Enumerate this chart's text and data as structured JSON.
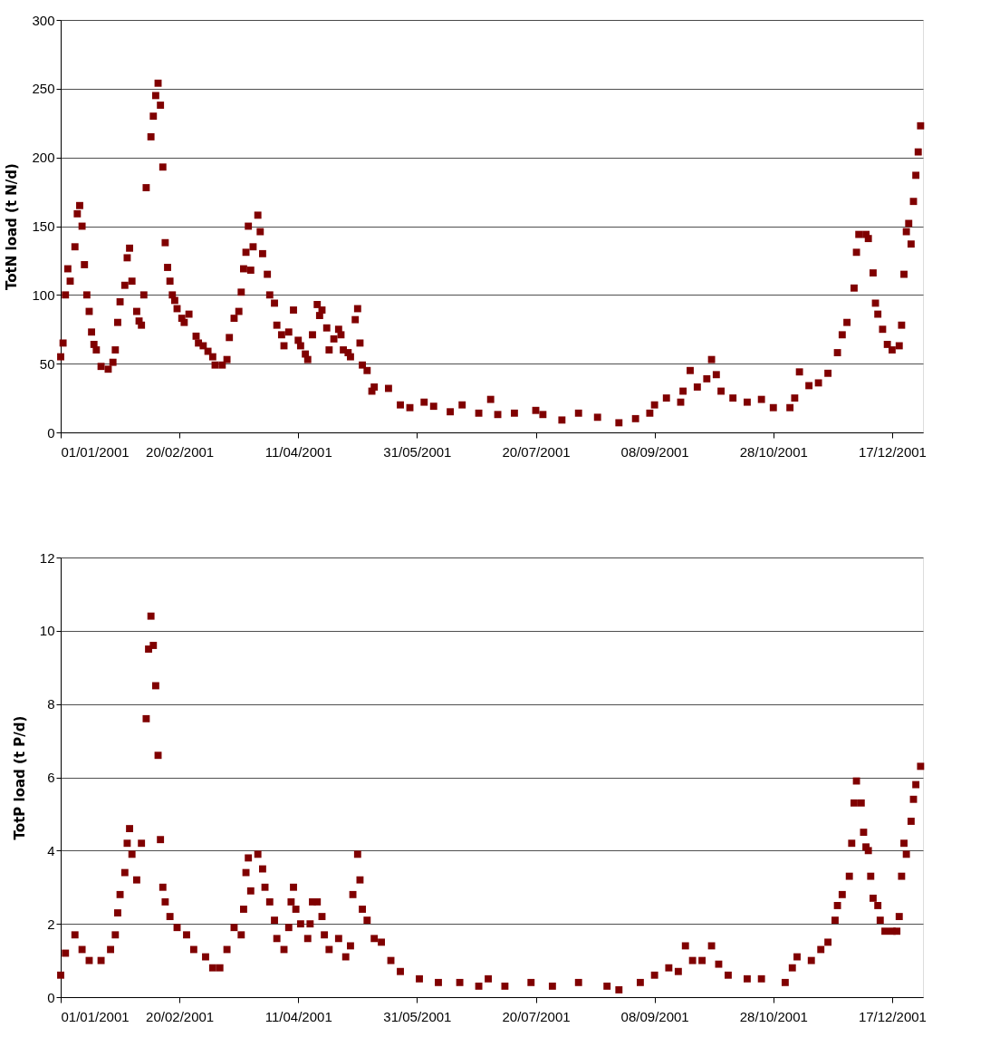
{
  "chart_data": [
    {
      "type": "scatter",
      "ylabel": "TotN load (t N/d)",
      "marker": "square",
      "grid": "y",
      "xlim": [
        "2001-01-01",
        "2001-12-30"
      ],
      "ylim": [
        0,
        300
      ],
      "yticks": [
        0,
        50,
        100,
        150,
        200,
        250,
        300
      ],
      "xticks": [
        {
          "value": "2001-01-01",
          "label": "01/01/2001"
        },
        {
          "value": "2001-02-20",
          "label": "20/02/2001"
        },
        {
          "value": "2001-04-11",
          "label": "11/04/2001"
        },
        {
          "value": "2001-05-31",
          "label": "31/05/2001"
        },
        {
          "value": "2001-07-20",
          "label": "20/07/2001"
        },
        {
          "value": "2001-09-08",
          "label": "08/09/2001"
        },
        {
          "value": "2001-10-28",
          "label": "28/10/2001"
        },
        {
          "value": "2001-12-17",
          "label": "17/12/2001"
        }
      ],
      "series": [
        {
          "color": "#800000",
          "x": [
            "2001-01-01",
            "2001-01-02",
            "2001-01-03",
            "2001-01-04",
            "2001-01-05",
            "2001-01-07",
            "2001-01-08",
            "2001-01-09",
            "2001-01-10",
            "2001-01-11",
            "2001-01-12",
            "2001-01-13",
            "2001-01-14",
            "2001-01-15",
            "2001-01-16",
            "2001-01-18",
            "2001-01-21",
            "2001-01-23",
            "2001-01-24",
            "2001-01-25",
            "2001-01-26",
            "2001-01-28",
            "2001-01-29",
            "2001-01-30",
            "2001-01-31",
            "2001-02-02",
            "2001-02-03",
            "2001-02-04",
            "2001-02-05",
            "2001-02-06",
            "2001-02-08",
            "2001-02-09",
            "2001-02-10",
            "2001-02-11",
            "2001-02-12",
            "2001-02-13",
            "2001-02-14",
            "2001-02-15",
            "2001-02-16",
            "2001-02-17",
            "2001-02-18",
            "2001-02-19",
            "2001-02-21",
            "2001-02-22",
            "2001-02-24",
            "2001-02-27",
            "2001-02-28",
            "2001-03-02",
            "2001-03-04",
            "2001-03-06",
            "2001-03-07",
            "2001-03-10",
            "2001-03-12",
            "2001-03-13",
            "2001-03-15",
            "2001-03-17",
            "2001-03-18",
            "2001-03-19",
            "2001-03-20",
            "2001-03-21",
            "2001-03-22",
            "2001-03-23",
            "2001-03-25",
            "2001-03-26",
            "2001-03-27",
            "2001-03-29",
            "2001-03-30",
            "2001-04-01",
            "2001-04-02",
            "2001-04-04",
            "2001-04-05",
            "2001-04-07",
            "2001-04-09",
            "2001-04-11",
            "2001-04-12",
            "2001-04-14",
            "2001-04-15",
            "2001-04-17",
            "2001-04-19",
            "2001-04-20",
            "2001-04-21",
            "2001-04-23",
            "2001-04-24",
            "2001-04-26",
            "2001-04-28",
            "2001-04-29",
            "2001-04-30",
            "2001-05-02",
            "2001-05-03",
            "2001-05-05",
            "2001-05-06",
            "2001-05-07",
            "2001-05-08",
            "2001-05-10",
            "2001-05-12",
            "2001-05-13",
            "2001-05-19",
            "2001-05-24",
            "2001-05-28",
            "2001-06-03",
            "2001-06-07",
            "2001-06-14",
            "2001-06-19",
            "2001-06-26",
            "2001-07-01",
            "2001-07-04",
            "2001-07-11",
            "2001-07-20",
            "2001-07-23",
            "2001-07-31",
            "2001-08-07",
            "2001-08-15",
            "2001-08-24",
            "2001-08-31",
            "2001-09-06",
            "2001-09-08",
            "2001-09-13",
            "2001-09-19",
            "2001-09-20",
            "2001-09-23",
            "2001-09-26",
            "2001-09-30",
            "2001-10-02",
            "2001-10-04",
            "2001-10-06",
            "2001-10-11",
            "2001-10-17",
            "2001-10-23",
            "2001-10-28",
            "2001-11-04",
            "2001-11-06",
            "2001-11-08",
            "2001-11-12",
            "2001-11-16",
            "2001-11-20",
            "2001-11-24",
            "2001-11-26",
            "2001-11-28",
            "2001-12-01",
            "2001-12-02",
            "2001-12-03",
            "2001-12-06",
            "2001-12-07",
            "2001-12-09",
            "2001-12-10",
            "2001-12-11",
            "2001-12-13",
            "2001-12-15",
            "2001-12-17",
            "2001-12-20",
            "2001-12-21",
            "2001-12-22",
            "2001-12-23",
            "2001-12-24",
            "2001-12-25",
            "2001-12-26",
            "2001-12-27",
            "2001-12-28",
            "2001-12-29"
          ],
          "values": [
            55,
            65,
            100,
            119,
            110,
            135,
            159,
            165,
            150,
            122,
            100,
            88,
            73,
            64,
            60,
            48,
            46,
            51,
            60,
            80,
            95,
            107,
            127,
            134,
            110,
            88,
            81,
            78,
            100,
            178,
            215,
            230,
            245,
            254,
            238,
            193,
            138,
            120,
            110,
            100,
            96,
            90,
            83,
            80,
            86,
            70,
            65,
            63,
            59,
            55,
            49,
            49,
            53,
            69,
            83,
            88,
            102,
            119,
            131,
            150,
            118,
            135,
            158,
            146,
            130,
            115,
            100,
            94,
            78,
            71,
            63,
            73,
            89,
            67,
            63,
            57,
            53,
            71,
            93,
            85,
            89,
            76,
            60,
            68,
            75,
            71,
            60,
            58,
            55,
            82,
            90,
            65,
            49,
            45,
            30,
            33,
            32,
            20,
            18,
            22,
            19,
            15,
            20,
            14,
            24,
            13,
            14,
            16,
            13,
            9,
            14,
            11,
            7,
            10,
            14,
            20,
            25,
            22,
            30,
            45,
            33,
            39,
            53,
            42,
            30,
            25,
            22,
            24,
            18,
            18,
            25,
            44,
            34,
            36,
            43,
            58,
            71,
            80,
            105,
            131,
            144,
            144,
            141,
            116,
            94,
            86,
            75,
            64,
            60,
            63,
            78,
            115,
            146,
            152,
            137,
            168,
            187,
            204,
            223
          ]
        }
      ]
    },
    {
      "type": "scatter",
      "ylabel": "TotP load (t P/d)",
      "marker": "square",
      "grid": "y",
      "xlim": [
        "2001-01-01",
        "2001-12-30"
      ],
      "ylim": [
        0,
        12
      ],
      "yticks": [
        0,
        2,
        4,
        6,
        8,
        10,
        12
      ],
      "xticks": [
        {
          "value": "2001-01-01",
          "label": "01/01/2001"
        },
        {
          "value": "2001-02-20",
          "label": "20/02/2001"
        },
        {
          "value": "2001-04-11",
          "label": "11/04/2001"
        },
        {
          "value": "2001-05-31",
          "label": "31/05/2001"
        },
        {
          "value": "2001-07-20",
          "label": "20/07/2001"
        },
        {
          "value": "2001-09-08",
          "label": "08/09/2001"
        },
        {
          "value": "2001-10-28",
          "label": "28/10/2001"
        },
        {
          "value": "2001-12-17",
          "label": "17/12/2001"
        }
      ],
      "series": [
        {
          "color": "#800000",
          "x": [
            "2001-01-01",
            "2001-01-03",
            "2001-01-07",
            "2001-01-10",
            "2001-01-13",
            "2001-01-18",
            "2001-01-22",
            "2001-01-24",
            "2001-01-25",
            "2001-01-26",
            "2001-01-28",
            "2001-01-29",
            "2001-01-30",
            "2001-01-31",
            "2001-02-02",
            "2001-02-04",
            "2001-02-06",
            "2001-02-07",
            "2001-02-08",
            "2001-02-09",
            "2001-02-10",
            "2001-02-11",
            "2001-02-12",
            "2001-02-13",
            "2001-02-14",
            "2001-02-16",
            "2001-02-19",
            "2001-02-23",
            "2001-02-26",
            "2001-03-03",
            "2001-03-06",
            "2001-03-09",
            "2001-03-12",
            "2001-03-15",
            "2001-03-18",
            "2001-03-19",
            "2001-03-20",
            "2001-03-21",
            "2001-03-22",
            "2001-03-25",
            "2001-03-27",
            "2001-03-28",
            "2001-03-30",
            "2001-04-01",
            "2001-04-02",
            "2001-04-05",
            "2001-04-07",
            "2001-04-08",
            "2001-04-09",
            "2001-04-10",
            "2001-04-12",
            "2001-04-15",
            "2001-04-16",
            "2001-04-17",
            "2001-04-19",
            "2001-04-21",
            "2001-04-22",
            "2001-04-24",
            "2001-04-28",
            "2001-05-01",
            "2001-05-03",
            "2001-05-04",
            "2001-05-06",
            "2001-05-07",
            "2001-05-08",
            "2001-05-10",
            "2001-05-13",
            "2001-05-16",
            "2001-05-20",
            "2001-05-24",
            "2001-06-01",
            "2001-06-09",
            "2001-06-18",
            "2001-06-26",
            "2001-06-30",
            "2001-07-07",
            "2001-07-18",
            "2001-07-27",
            "2001-08-07",
            "2001-08-19",
            "2001-08-24",
            "2001-09-02",
            "2001-09-08",
            "2001-09-14",
            "2001-09-18",
            "2001-09-21",
            "2001-09-24",
            "2001-09-28",
            "2001-10-02",
            "2001-10-05",
            "2001-10-09",
            "2001-10-17",
            "2001-10-23",
            "2001-11-02",
            "2001-11-05",
            "2001-11-07",
            "2001-11-13",
            "2001-11-17",
            "2001-11-20",
            "2001-11-23",
            "2001-11-24",
            "2001-11-26",
            "2001-11-29",
            "2001-11-30",
            "2001-12-01",
            "2001-12-02",
            "2001-12-04",
            "2001-12-05",
            "2001-12-06",
            "2001-12-07",
            "2001-12-08",
            "2001-12-09",
            "2001-12-11",
            "2001-12-12",
            "2001-12-14",
            "2001-12-17",
            "2001-12-19",
            "2001-12-20",
            "2001-12-21",
            "2001-12-22",
            "2001-12-23",
            "2001-12-25",
            "2001-12-26",
            "2001-12-27",
            "2001-12-29"
          ],
          "values": [
            0.6,
            1.2,
            1.7,
            1.3,
            1.0,
            1.0,
            1.3,
            1.7,
            2.3,
            2.8,
            3.4,
            4.2,
            4.6,
            3.9,
            3.2,
            4.2,
            7.6,
            9.5,
            10.4,
            9.6,
            8.5,
            6.6,
            4.3,
            3.0,
            2.6,
            2.2,
            1.9,
            1.7,
            1.3,
            1.1,
            0.8,
            0.8,
            1.3,
            1.9,
            1.7,
            2.4,
            3.4,
            3.8,
            2.9,
            3.9,
            3.5,
            3.0,
            2.6,
            2.1,
            1.6,
            1.3,
            1.9,
            2.6,
            3.0,
            2.4,
            2.0,
            1.6,
            2.0,
            2.6,
            2.6,
            2.2,
            1.7,
            1.3,
            1.6,
            1.1,
            1.4,
            2.8,
            3.9,
            3.2,
            2.4,
            2.1,
            1.6,
            1.5,
            1.0,
            0.7,
            0.5,
            0.4,
            0.4,
            0.3,
            0.5,
            0.3,
            0.4,
            0.3,
            0.4,
            0.3,
            0.2,
            0.4,
            0.6,
            0.8,
            0.7,
            1.4,
            1.0,
            1.0,
            1.4,
            0.9,
            0.6,
            0.5,
            0.5,
            0.4,
            0.8,
            1.1,
            1.0,
            1.3,
            1.5,
            2.1,
            2.5,
            2.8,
            3.3,
            4.2,
            5.3,
            5.9,
            5.3,
            4.5,
            4.1,
            4.0,
            3.3,
            2.7,
            2.5,
            2.1,
            1.8,
            1.8,
            1.8,
            2.2,
            3.3,
            4.2,
            3.9,
            4.8,
            5.4,
            5.8,
            6.3
          ]
        }
      ]
    }
  ]
}
